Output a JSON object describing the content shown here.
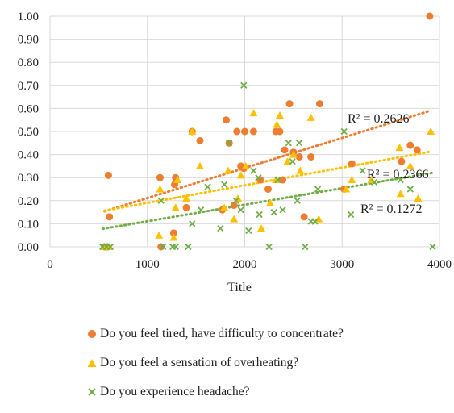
{
  "chart_data": {
    "type": "scatter",
    "xlabel": "Title",
    "xlim": [
      0,
      4000
    ],
    "ylim": [
      0,
      1
    ],
    "x_ticks": [
      "0",
      "1000",
      "2000",
      "3000",
      "4000"
    ],
    "y_ticks": [
      "0.00",
      "0.10",
      "0.20",
      "0.30",
      "0.40",
      "0.50",
      "0.60",
      "0.70",
      "0.80",
      "0.90",
      "1.00"
    ],
    "grid": true,
    "legend_position": "bottom",
    "series": [
      {
        "name": "Do you feel tired, have difficulty to concentrate?",
        "marker": "circle",
        "color": "#ED7D31",
        "trendline_color": "#ED7D31",
        "r2_label": "R² = 0.2626",
        "points": [
          [
            560,
            0.0
          ],
          [
            590,
            0.0
          ],
          [
            600,
            0.31
          ],
          [
            610,
            0.13
          ],
          [
            1130,
            0.3
          ],
          [
            1140,
            0.0
          ],
          [
            1270,
            0.06
          ],
          [
            1280,
            0.27
          ],
          [
            1290,
            0.3
          ],
          [
            1400,
            0.17
          ],
          [
            1460,
            0.5
          ],
          [
            1540,
            0.46
          ],
          [
            1770,
            0.16
          ],
          [
            1810,
            0.55
          ],
          [
            1840,
            0.45
          ],
          [
            1890,
            0.18
          ],
          [
            1920,
            0.5
          ],
          [
            1960,
            0.35
          ],
          [
            1990,
            0.34
          ],
          [
            2000,
            0.5
          ],
          [
            2090,
            0.5
          ],
          [
            2160,
            0.29
          ],
          [
            2240,
            0.25
          ],
          [
            2320,
            0.5
          ],
          [
            2360,
            0.5
          ],
          [
            2390,
            0.29
          ],
          [
            2410,
            0.42
          ],
          [
            2460,
            0.62
          ],
          [
            2500,
            0.41
          ],
          [
            2560,
            0.39
          ],
          [
            2610,
            0.13
          ],
          [
            2680,
            0.39
          ],
          [
            2770,
            0.62
          ],
          [
            3020,
            0.25
          ],
          [
            3100,
            0.36
          ],
          [
            3610,
            0.37
          ],
          [
            3700,
            0.44
          ],
          [
            3770,
            0.42
          ],
          [
            3900,
            1.0
          ]
        ]
      },
      {
        "name": "Do you feel a sensation of overheating?",
        "marker": "triangle",
        "color": "#FFC000",
        "trendline_color": "#FFC000",
        "r2_label": "R² = 0.2366",
        "points": [
          [
            560,
            0.0
          ],
          [
            600,
            0.0
          ],
          [
            1120,
            0.05
          ],
          [
            1130,
            0.25
          ],
          [
            1270,
            0.04
          ],
          [
            1290,
            0.17
          ],
          [
            1310,
            0.29
          ],
          [
            1400,
            0.21
          ],
          [
            1460,
            0.5
          ],
          [
            1540,
            0.35
          ],
          [
            1790,
            0.17
          ],
          [
            1830,
            0.33
          ],
          [
            1890,
            0.12
          ],
          [
            1930,
            0.21
          ],
          [
            1960,
            0.31
          ],
          [
            2010,
            0.35
          ],
          [
            2090,
            0.58
          ],
          [
            2170,
            0.08
          ],
          [
            2260,
            0.19
          ],
          [
            2320,
            0.29
          ],
          [
            2330,
            0.53
          ],
          [
            2360,
            0.57
          ],
          [
            2440,
            0.37
          ],
          [
            2500,
            0.4
          ],
          [
            2570,
            0.33
          ],
          [
            2680,
            0.56
          ],
          [
            2760,
            0.12
          ],
          [
            3040,
            0.25
          ],
          [
            3100,
            0.29
          ],
          [
            3300,
            0.29
          ],
          [
            3590,
            0.43
          ],
          [
            3600,
            0.23
          ],
          [
            3700,
            0.35
          ],
          [
            3780,
            0.21
          ],
          [
            3910,
            0.5
          ]
        ]
      },
      {
        "name": "Do you experience headache?",
        "marker": "x",
        "color": "#70AD47",
        "trendline_color": "#70AD47",
        "r2_label": "R² = 0.1272",
        "points": [
          [
            540,
            0.0
          ],
          [
            580,
            0.0
          ],
          [
            620,
            0.0
          ],
          [
            1140,
            0.2
          ],
          [
            1160,
            0.0
          ],
          [
            1260,
            0.0
          ],
          [
            1290,
            0.0
          ],
          [
            1420,
            0.0
          ],
          [
            1460,
            0.1
          ],
          [
            1550,
            0.16
          ],
          [
            1620,
            0.26
          ],
          [
            1750,
            0.08
          ],
          [
            1790,
            0.27
          ],
          [
            1840,
            0.45
          ],
          [
            1910,
            0.2
          ],
          [
            1960,
            0.16
          ],
          [
            1990,
            0.7
          ],
          [
            2040,
            0.07
          ],
          [
            2090,
            0.33
          ],
          [
            2140,
            0.3
          ],
          [
            2150,
            0.14
          ],
          [
            2250,
            0.0
          ],
          [
            2300,
            0.15
          ],
          [
            2340,
            0.29
          ],
          [
            2390,
            0.16
          ],
          [
            2450,
            0.45
          ],
          [
            2490,
            0.37
          ],
          [
            2540,
            0.2
          ],
          [
            2560,
            0.45
          ],
          [
            2620,
            0.0
          ],
          [
            2680,
            0.11
          ],
          [
            2720,
            0.11
          ],
          [
            2750,
            0.25
          ],
          [
            3020,
            0.5
          ],
          [
            3090,
            0.14
          ],
          [
            3210,
            0.33
          ],
          [
            3330,
            0.28
          ],
          [
            3600,
            0.29
          ],
          [
            3700,
            0.25
          ],
          [
            3930,
            0.0
          ]
        ]
      }
    ]
  }
}
